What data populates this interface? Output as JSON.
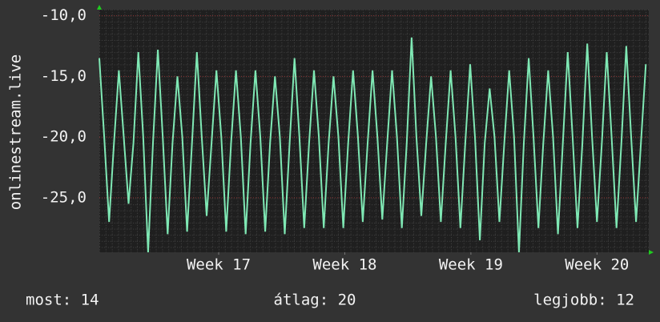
{
  "chart_data": {
    "type": "line",
    "y_label": "onlinestream.live",
    "x": [
      0,
      6.5,
      13,
      19.5,
      26,
      32.5,
      39,
      45.5,
      52,
      58.5,
      65,
      71.5,
      78,
      84.5,
      91,
      97.5,
      104,
      110.5,
      117,
      123.5,
      130,
      136.5,
      143,
      149.5,
      156,
      162.5,
      169,
      175.5,
      182,
      188.5,
      195,
      201.5,
      208,
      214.5,
      221,
      227.5,
      234,
      240.5,
      247,
      253.5,
      260,
      266.5,
      273,
      279.5,
      286,
      292.5,
      299,
      305.5,
      312,
      318.5,
      325,
      331.5,
      338,
      344.5,
      351,
      357.5,
      364,
      370.5,
      377,
      383.5,
      390,
      396.5,
      403,
      409.5,
      416,
      422.5,
      429,
      435.5,
      442,
      448.5,
      455,
      461.5,
      468,
      474.5,
      481,
      487.5,
      494,
      500.5,
      507,
      513.5,
      520,
      526.5,
      533,
      539.5,
      546,
      552.5,
      559,
      565.5,
      572,
      578.5,
      585,
      591.5,
      598,
      604.5,
      611,
      617.5,
      624,
      630.5,
      637,
      643.5,
      650,
      656.5,
      663,
      669.5,
      676,
      682.5,
      689,
      695.5,
      702,
      708.5,
      715,
      721.5,
      728
    ],
    "series": [
      {
        "color": "#7fe8b4",
        "values": [
          -13.5,
          -20,
          -27,
          -20.5,
          -14.5,
          -20,
          -25.5,
          -20.5,
          -13,
          -20,
          -29.5,
          -20.5,
          -12.8,
          -20,
          -28,
          -20.5,
          -15,
          -20,
          -27.8,
          -20.5,
          -13,
          -20,
          -26.5,
          -20.5,
          -14.5,
          -20,
          -27.8,
          -20.5,
          -14.5,
          -20,
          -28,
          -20.5,
          -14.5,
          -20,
          -27.8,
          -20.5,
          -15,
          -20,
          -28,
          -20.5,
          -13.5,
          -20,
          -27.5,
          -20.5,
          -14.5,
          -20,
          -27.5,
          -20.5,
          -15,
          -20,
          -27.5,
          -20.5,
          -14.5,
          -20,
          -27,
          -20.5,
          -14.5,
          -20,
          -26.8,
          -20.5,
          -14.5,
          -20,
          -27.5,
          -20.5,
          -11.8,
          -20,
          -26.5,
          -20.5,
          -15,
          -20,
          -27,
          -20.5,
          -14.5,
          -20,
          -27.5,
          -20.5,
          -14,
          -20,
          -28.5,
          -20.5,
          -16,
          -20,
          -27,
          -20.5,
          -14.5,
          -20,
          -29.5,
          -20.5,
          -13.5,
          -20,
          -27.5,
          -20.5,
          -14.5,
          -20,
          -28,
          -20.5,
          -13,
          -20,
          -27.5,
          -20.5,
          -12.3,
          -20,
          -27,
          -20.5,
          -13,
          -20,
          -27.5,
          -20.5,
          -12.5,
          -20,
          -27,
          -20.5,
          -14
        ]
      }
    ],
    "xlim": [
      0,
      732
    ],
    "xticks": [
      {
        "value": 159,
        "label": "Week 17"
      },
      {
        "value": 327,
        "label": "Week 18"
      },
      {
        "value": 495,
        "label": "Week 19"
      },
      {
        "value": 663,
        "label": "Week 20"
      }
    ],
    "ylim": [
      -29.5,
      -9.5
    ],
    "yticks": [
      {
        "value": -10,
        "label": "-10,0"
      },
      {
        "value": -15,
        "label": "-15,0"
      },
      {
        "value": -20,
        "label": "-20,0"
      },
      {
        "value": -25,
        "label": "-25,0"
      }
    ],
    "grid": true,
    "footer": {
      "current": "most: 14",
      "average": "átlag: 20",
      "best": "legjobb: 12"
    }
  }
}
